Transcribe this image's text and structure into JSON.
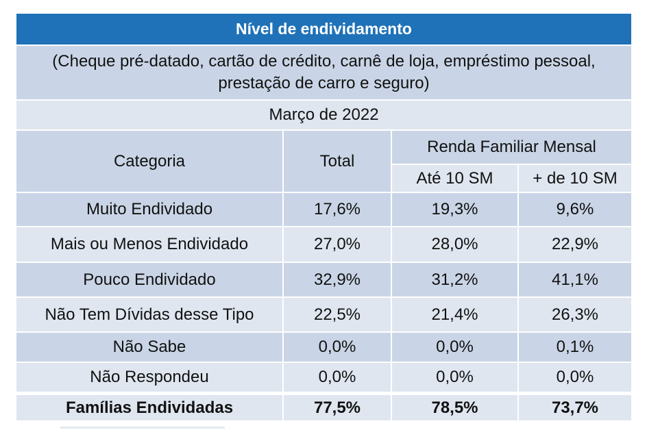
{
  "table": {
    "title": "Nível de endividamento",
    "subtitle_line1": "(Cheque pré-datado, cartão de crédito, carnê de loja, empréstimo pessoal,",
    "subtitle_line2": "prestação de carro e seguro)",
    "period": "Março de 2022",
    "headers": {
      "category": "Categoria",
      "total": "Total",
      "income_group": "Renda Familiar Mensal",
      "up_to_10": "Até 10 SM",
      "over_10": "+ de 10 SM"
    },
    "rows": [
      {
        "category": "Muito Endividado",
        "total": "17,6%",
        "up_to_10": "19,3%",
        "over_10": "9,6%"
      },
      {
        "category": "Mais ou Menos Endividado",
        "total": "27,0%",
        "up_to_10": "28,0%",
        "over_10": "22,9%"
      },
      {
        "category": "Pouco Endividado",
        "total": "32,9%",
        "up_to_10": "31,2%",
        "over_10": "41,1%"
      },
      {
        "category": "Não Tem Dívidas desse Tipo",
        "total": "22,5%",
        "up_to_10": "21,4%",
        "over_10": "26,3%"
      },
      {
        "category": "Não Sabe",
        "total": "0,0%",
        "up_to_10": "0,0%",
        "over_10": "0,1%"
      },
      {
        "category": "Não Respondeu",
        "total": "0,0%",
        "up_to_10": "0,0%",
        "over_10": "0,0%"
      }
    ],
    "total_row": {
      "category": "Famílias Endividadas",
      "total": "77,5%",
      "up_to_10": "78,5%",
      "over_10": "73,7%"
    }
  },
  "colors": {
    "title_bg": "#1f72b8",
    "row_dark": "#c9d5e6",
    "row_light": "#dfe6f0"
  }
}
